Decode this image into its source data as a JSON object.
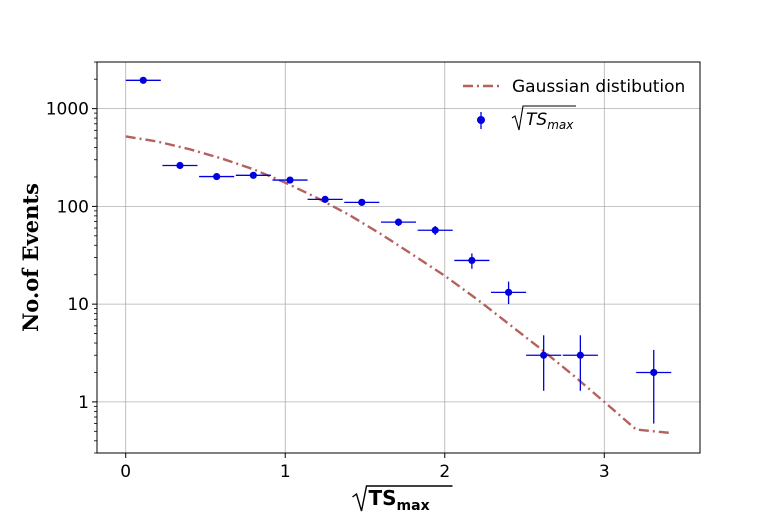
{
  "chart_data": {
    "type": "scatter",
    "xlabel_base": "TS",
    "xlabel_sub": "max",
    "ylabel": "No.of Events",
    "xlim": [
      -0.18,
      3.6
    ],
    "ylim": [
      0.3,
      3000
    ],
    "yscale": "log",
    "grid": true,
    "legend_position": "top-right",
    "x_ticks": [
      0,
      1,
      2,
      3
    ],
    "x_tick_labels": [
      "0",
      "1",
      "2",
      "3"
    ],
    "y_ticks": [
      1,
      10,
      100,
      1000
    ],
    "y_tick_labels": [
      "1",
      "10",
      "100",
      "1000"
    ],
    "series": [
      {
        "name": "Gaussian distibution",
        "kind": "line",
        "style": "dashdot",
        "color": "#b5615e",
        "x": [
          0.0,
          0.2,
          0.4,
          0.6,
          0.8,
          1.0,
          1.2,
          1.4,
          1.6,
          1.8,
          2.0,
          2.2,
          2.4,
          2.6,
          2.8,
          3.0,
          3.2,
          3.42
        ],
        "y": [
          520,
          460,
          385,
          310,
          240,
          175,
          122,
          82,
          52,
          32,
          19.5,
          11.3,
          6.3,
          3.5,
          1.9,
          1.0,
          0.52,
          0.48
        ]
      },
      {
        "name_base": "TS",
        "name_sub": "max",
        "kind": "errorbar",
        "color": "#0000e0",
        "points": [
          {
            "x": 0.11,
            "y": 1950,
            "xerr": 0.11,
            "ylo": 1950,
            "yhi": 1950
          },
          {
            "x": 0.34,
            "y": 262,
            "xerr": 0.11,
            "ylo": 262,
            "yhi": 262
          },
          {
            "x": 0.57,
            "y": 202,
            "xerr": 0.11,
            "ylo": 202,
            "yhi": 202
          },
          {
            "x": 0.8,
            "y": 208,
            "xerr": 0.11,
            "ylo": 208,
            "yhi": 208
          },
          {
            "x": 1.03,
            "y": 186,
            "xerr": 0.11,
            "ylo": 186,
            "yhi": 186
          },
          {
            "x": 1.25,
            "y": 118,
            "xerr": 0.11,
            "ylo": 112,
            "yhi": 124
          },
          {
            "x": 1.48,
            "y": 110,
            "xerr": 0.11,
            "ylo": 104,
            "yhi": 116
          },
          {
            "x": 1.71,
            "y": 69,
            "xerr": 0.11,
            "ylo": 63,
            "yhi": 75
          },
          {
            "x": 1.94,
            "y": 57,
            "xerr": 0.11,
            "ylo": 51,
            "yhi": 63
          },
          {
            "x": 2.17,
            "y": 28,
            "xerr": 0.11,
            "ylo": 23,
            "yhi": 33
          },
          {
            "x": 2.4,
            "y": 13.2,
            "xerr": 0.11,
            "ylo": 10,
            "yhi": 17
          },
          {
            "x": 2.62,
            "y": 3.0,
            "xerr": 0.11,
            "ylo": 1.3,
            "yhi": 4.8
          },
          {
            "x": 2.85,
            "y": 3.0,
            "xerr": 0.11,
            "ylo": 1.3,
            "yhi": 4.8
          },
          {
            "x": 3.31,
            "y": 2.0,
            "xerr": 0.11,
            "ylo": 0.6,
            "yhi": 3.4
          }
        ]
      }
    ]
  }
}
